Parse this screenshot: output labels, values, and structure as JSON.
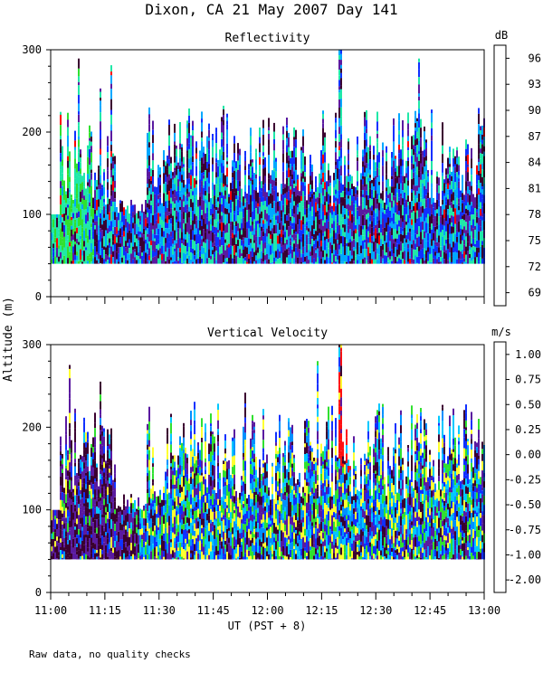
{
  "figure": {
    "title": "Dixon, CA 21 May 2007  Day 141",
    "footnote": "Raw data, no quality checks",
    "ylabel": "Altitude (m)",
    "xlabel": "UT  (PST + 8)"
  },
  "chart_data": [
    {
      "type": "heatmap",
      "title": "Reflectivity",
      "units": "dB",
      "x_range_hours": [
        11.0,
        13.0
      ],
      "ylim": [
        0,
        300
      ],
      "y_ticks": [
        0,
        100,
        200,
        300
      ],
      "x_ticks": [
        "11:00",
        "11:15",
        "11:30",
        "11:45",
        "12:00",
        "12:15",
        "12:30",
        "12:45",
        "13:00"
      ],
      "data_floor_m": 40,
      "colorbar": {
        "labels": [
          "96",
          "93",
          "90",
          "87",
          "84",
          "81",
          "78",
          "75",
          "72",
          "69"
        ],
        "colors": [
          "#ffd700",
          "#ff8000",
          "#ff0000",
          "#3a0030",
          "#5a1aa0",
          "#1030ff",
          "#00a8ff",
          "#20e8a8",
          "#30e030",
          "#d8ff20"
        ]
      }
    },
    {
      "type": "heatmap",
      "title": "Vertical Velocity",
      "units": "m/s",
      "x_range_hours": [
        11.0,
        13.0
      ],
      "ylim": [
        0,
        300
      ],
      "y_ticks": [
        0,
        100,
        200,
        300
      ],
      "x_ticks": [
        "11:00",
        "11:15",
        "11:30",
        "11:45",
        "12:00",
        "12:15",
        "12:30",
        "12:45",
        "13:00"
      ],
      "data_floor_m": 40,
      "colorbar": {
        "labels": [
          "1.00",
          "0.75",
          "0.50",
          "0.25",
          "0.00",
          "-0.25",
          "-0.50",
          "-0.75",
          "-1.00",
          "-2.00"
        ],
        "colors": [
          "#ff1010",
          "#ff8000",
          "#ffd000",
          "#ffff30",
          "#30e030",
          "#00c8ff",
          "#0090ff",
          "#1030ff",
          "#5a1aa0",
          "#3a0030"
        ]
      }
    }
  ]
}
